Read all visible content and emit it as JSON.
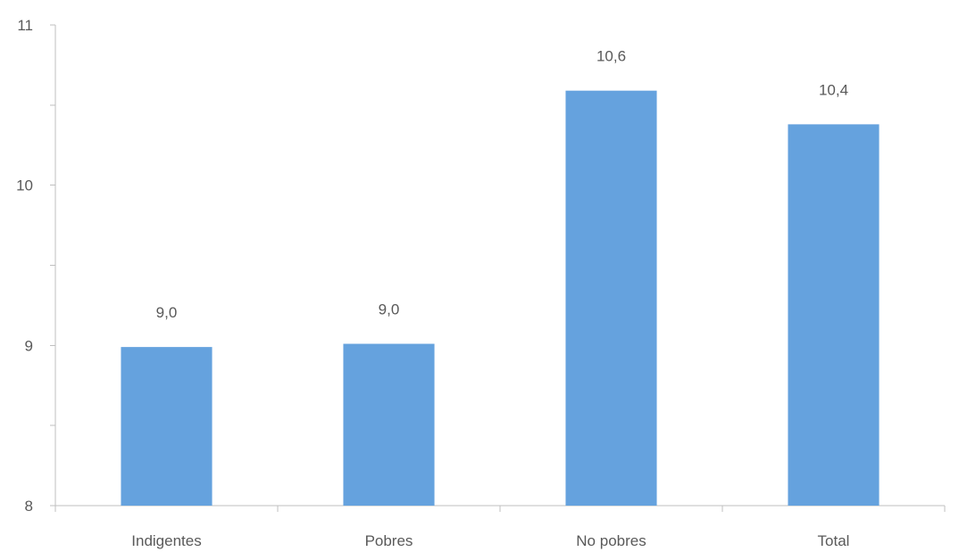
{
  "chart_data": {
    "type": "bar",
    "title": "",
    "xlabel": "",
    "ylabel": "",
    "categories": [
      "Indigentes",
      "Pobres",
      "No pobres",
      "Total"
    ],
    "values": [
      8.99,
      9.01,
      10.59,
      10.38
    ],
    "data_labels": [
      "9,0",
      "9,0",
      "10,6",
      "10,4"
    ],
    "ylim": [
      8,
      11
    ],
    "y_ticks": [
      8,
      9,
      10,
      11
    ],
    "y_tick_labels": [
      "8",
      "9",
      "10",
      "11"
    ],
    "y_minor_ticks": [
      8.5,
      9.5,
      10.5
    ],
    "bar_color": "#65a2de",
    "grid": false,
    "legend": "none"
  }
}
